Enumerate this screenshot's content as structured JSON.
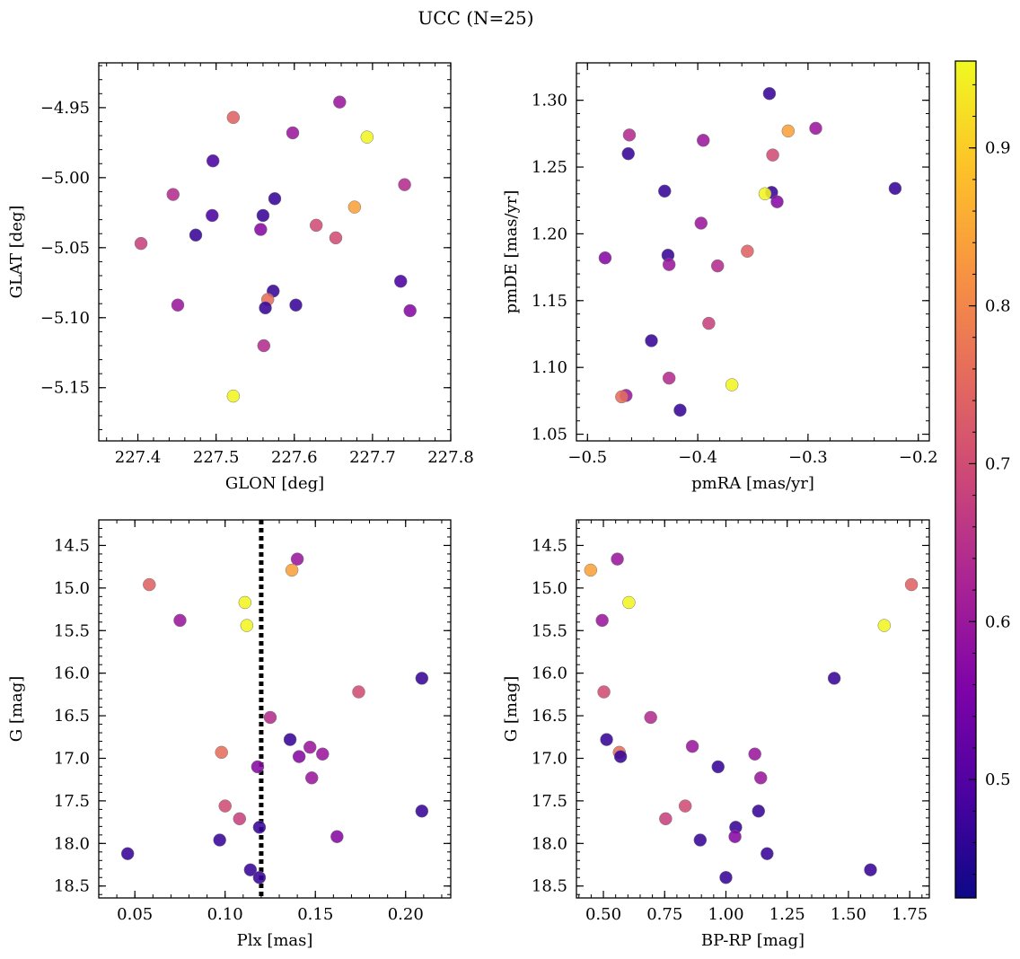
{
  "title": "UCC (N=25)",
  "colorbar": {
    "min": 0.425,
    "max": 0.955,
    "ticks": [
      0.5,
      0.6,
      0.7,
      0.8,
      0.9
    ],
    "tick_labels": [
      "0.5",
      "0.6",
      "0.7",
      "0.8",
      "0.9"
    ],
    "colormap": "plasma"
  },
  "chart_data": [
    {
      "type": "scatter",
      "xlabel": "GLON [deg]",
      "ylabel": "GLAT [deg]",
      "xlim": [
        227.35,
        227.8
      ],
      "ylim": [
        -5.188,
        -4.918
      ],
      "x_ticks": [
        227.4,
        227.5,
        227.6,
        227.7,
        227.8
      ],
      "x_tick_labels": [
        "227.4",
        "227.5",
        "227.6",
        "227.7",
        "227.8"
      ],
      "y_ticks": [
        -5.15,
        -5.1,
        -5.05,
        -5.0,
        -4.95
      ],
      "y_tick_labels": [
        "−5.15",
        "−5.10",
        "−5.05",
        "−5.00",
        "−4.95"
      ],
      "y_inverted": false,
      "points": [
        {
          "x": 227.658,
          "y": -4.946,
          "c": 0.6
        },
        {
          "x": 227.522,
          "y": -4.957,
          "c": 0.74
        },
        {
          "x": 227.598,
          "y": -4.968,
          "c": 0.6
        },
        {
          "x": 227.693,
          "y": -4.971,
          "c": 0.95
        },
        {
          "x": 227.496,
          "y": -4.988,
          "c": 0.49
        },
        {
          "x": 227.741,
          "y": -5.005,
          "c": 0.64
        },
        {
          "x": 227.445,
          "y": -5.012,
          "c": 0.64
        },
        {
          "x": 227.575,
          "y": -5.015,
          "c": 0.47
        },
        {
          "x": 227.677,
          "y": -5.021,
          "c": 0.84
        },
        {
          "x": 227.495,
          "y": -5.027,
          "c": 0.49
        },
        {
          "x": 227.56,
          "y": -5.027,
          "c": 0.47
        },
        {
          "x": 227.628,
          "y": -5.034,
          "c": 0.7
        },
        {
          "x": 227.557,
          "y": -5.037,
          "c": 0.57
        },
        {
          "x": 227.474,
          "y": -5.041,
          "c": 0.47
        },
        {
          "x": 227.653,
          "y": -5.043,
          "c": 0.7
        },
        {
          "x": 227.404,
          "y": -5.047,
          "c": 0.68
        },
        {
          "x": 227.736,
          "y": -5.074,
          "c": 0.49
        },
        {
          "x": 227.573,
          "y": -5.081,
          "c": 0.47
        },
        {
          "x": 227.566,
          "y": -5.087,
          "c": 0.76
        },
        {
          "x": 227.451,
          "y": -5.091,
          "c": 0.6
        },
        {
          "x": 227.602,
          "y": -5.091,
          "c": 0.47
        },
        {
          "x": 227.563,
          "y": -5.093,
          "c": 0.47
        },
        {
          "x": 227.748,
          "y": -5.095,
          "c": 0.57
        },
        {
          "x": 227.561,
          "y": -5.12,
          "c": 0.64
        },
        {
          "x": 227.522,
          "y": -5.156,
          "c": 0.95
        }
      ]
    },
    {
      "type": "scatter",
      "xlabel": "pmRA [mas/yr]",
      "ylabel": "pmDE [mas/yr]",
      "xlim": [
        -0.51,
        -0.19
      ],
      "ylim": [
        1.045,
        1.328
      ],
      "x_ticks": [
        -0.5,
        -0.4,
        -0.3,
        -0.2
      ],
      "x_tick_labels": [
        "−0.5",
        "−0.4",
        "−0.3",
        "−0.2"
      ],
      "y_ticks": [
        1.05,
        1.1,
        1.15,
        1.2,
        1.25,
        1.3
      ],
      "y_tick_labels": [
        "1.05",
        "1.10",
        "1.15",
        "1.20",
        "1.25",
        "1.30"
      ],
      "y_inverted": false,
      "points": [
        {
          "x": -0.335,
          "y": 1.305,
          "c": 0.47
        },
        {
          "x": -0.293,
          "y": 1.279,
          "c": 0.6
        },
        {
          "x": -0.318,
          "y": 1.277,
          "c": 0.84
        },
        {
          "x": -0.462,
          "y": 1.274,
          "c": 0.64
        },
        {
          "x": -0.395,
          "y": 1.27,
          "c": 0.6
        },
        {
          "x": -0.463,
          "y": 1.26,
          "c": 0.47
        },
        {
          "x": -0.332,
          "y": 1.259,
          "c": 0.7
        },
        {
          "x": -0.221,
          "y": 1.234,
          "c": 0.47
        },
        {
          "x": -0.43,
          "y": 1.232,
          "c": 0.47
        },
        {
          "x": -0.333,
          "y": 1.231,
          "c": 0.47
        },
        {
          "x": -0.339,
          "y": 1.23,
          "c": 0.95
        },
        {
          "x": -0.328,
          "y": 1.224,
          "c": 0.57
        },
        {
          "x": -0.397,
          "y": 1.208,
          "c": 0.6
        },
        {
          "x": -0.355,
          "y": 1.187,
          "c": 0.74
        },
        {
          "x": -0.427,
          "y": 1.184,
          "c": 0.47
        },
        {
          "x": -0.484,
          "y": 1.182,
          "c": 0.57
        },
        {
          "x": -0.426,
          "y": 1.177,
          "c": 0.6
        },
        {
          "x": -0.382,
          "y": 1.176,
          "c": 0.64
        },
        {
          "x": -0.39,
          "y": 1.133,
          "c": 0.68
        },
        {
          "x": -0.442,
          "y": 1.12,
          "c": 0.47
        },
        {
          "x": -0.426,
          "y": 1.092,
          "c": 0.64
        },
        {
          "x": -0.369,
          "y": 1.087,
          "c": 0.95
        },
        {
          "x": -0.465,
          "y": 1.079,
          "c": 0.6
        },
        {
          "x": -0.469,
          "y": 1.078,
          "c": 0.76
        },
        {
          "x": -0.416,
          "y": 1.068,
          "c": 0.47
        }
      ]
    },
    {
      "type": "scatter",
      "xlabel": "Plx [mas]",
      "ylabel": "G [mag]",
      "xlim": [
        0.03,
        0.225
      ],
      "ylim": [
        14.2,
        18.64
      ],
      "x_ticks": [
        0.05,
        0.1,
        0.15,
        0.2
      ],
      "x_tick_labels": [
        "0.05",
        "0.10",
        "0.15",
        "0.20"
      ],
      "y_ticks": [
        14.5,
        15.0,
        15.5,
        16.0,
        16.5,
        17.0,
        17.5,
        18.0,
        18.5
      ],
      "y_tick_labels": [
        "14.5",
        "15.0",
        "15.5",
        "16.0",
        "16.5",
        "17.0",
        "17.5",
        "18.0",
        "18.5"
      ],
      "y_inverted": true,
      "vline": {
        "x": 0.12,
        "style": "dotted",
        "color": "#000000"
      },
      "points": [
        {
          "x": 0.14,
          "y": 14.66,
          "c": 0.6
        },
        {
          "x": 0.137,
          "y": 14.79,
          "c": 0.84
        },
        {
          "x": 0.058,
          "y": 14.96,
          "c": 0.74
        },
        {
          "x": 0.111,
          "y": 15.17,
          "c": 0.95
        },
        {
          "x": 0.075,
          "y": 15.38,
          "c": 0.6
        },
        {
          "x": 0.112,
          "y": 15.44,
          "c": 0.95
        },
        {
          "x": 0.209,
          "y": 16.06,
          "c": 0.47
        },
        {
          "x": 0.174,
          "y": 16.22,
          "c": 0.7
        },
        {
          "x": 0.125,
          "y": 16.52,
          "c": 0.64
        },
        {
          "x": 0.136,
          "y": 16.78,
          "c": 0.47
        },
        {
          "x": 0.147,
          "y": 16.87,
          "c": 0.6
        },
        {
          "x": 0.098,
          "y": 16.93,
          "c": 0.76
        },
        {
          "x": 0.154,
          "y": 16.95,
          "c": 0.6
        },
        {
          "x": 0.141,
          "y": 16.98,
          "c": 0.57
        },
        {
          "x": 0.118,
          "y": 17.1,
          "c": 0.57
        },
        {
          "x": 0.148,
          "y": 17.23,
          "c": 0.6
        },
        {
          "x": 0.1,
          "y": 17.56,
          "c": 0.7
        },
        {
          "x": 0.209,
          "y": 17.62,
          "c": 0.47
        },
        {
          "x": 0.108,
          "y": 17.71,
          "c": 0.68
        },
        {
          "x": 0.119,
          "y": 17.81,
          "c": 0.47
        },
        {
          "x": 0.162,
          "y": 17.92,
          "c": 0.57
        },
        {
          "x": 0.097,
          "y": 17.96,
          "c": 0.47
        },
        {
          "x": 0.046,
          "y": 18.12,
          "c": 0.47
        },
        {
          "x": 0.114,
          "y": 18.31,
          "c": 0.47
        },
        {
          "x": 0.119,
          "y": 18.4,
          "c": 0.47
        }
      ]
    },
    {
      "type": "scatter",
      "xlabel": "BP-RP [mag]",
      "ylabel": "G [mag]",
      "xlim": [
        0.39,
        1.83
      ],
      "ylim": [
        14.2,
        18.64
      ],
      "x_ticks": [
        0.5,
        0.75,
        1.0,
        1.25,
        1.5,
        1.75
      ],
      "x_tick_labels": [
        "0.50",
        "0.75",
        "1.00",
        "1.25",
        "1.50",
        "1.75"
      ],
      "y_ticks": [
        14.5,
        15.0,
        15.5,
        16.0,
        16.5,
        17.0,
        17.5,
        18.0,
        18.5
      ],
      "y_tick_labels": [
        "14.5",
        "15.0",
        "15.5",
        "16.0",
        "16.5",
        "17.0",
        "17.5",
        "18.0",
        "18.5"
      ],
      "y_inverted": true,
      "points": [
        {
          "x": 0.557,
          "y": 14.66,
          "c": 0.6
        },
        {
          "x": 0.448,
          "y": 14.79,
          "c": 0.84
        },
        {
          "x": 1.757,
          "y": 14.96,
          "c": 0.74
        },
        {
          "x": 0.604,
          "y": 15.17,
          "c": 0.95
        },
        {
          "x": 0.495,
          "y": 15.38,
          "c": 0.6
        },
        {
          "x": 1.646,
          "y": 15.44,
          "c": 0.95
        },
        {
          "x": 1.442,
          "y": 16.06,
          "c": 0.47
        },
        {
          "x": 0.502,
          "y": 16.22,
          "c": 0.7
        },
        {
          "x": 0.693,
          "y": 16.52,
          "c": 0.64
        },
        {
          "x": 0.513,
          "y": 16.78,
          "c": 0.47
        },
        {
          "x": 0.863,
          "y": 16.86,
          "c": 0.6
        },
        {
          "x": 0.565,
          "y": 16.93,
          "c": 0.76
        },
        {
          "x": 1.118,
          "y": 16.95,
          "c": 0.6
        },
        {
          "x": 0.57,
          "y": 16.98,
          "c": 0.47
        },
        {
          "x": 0.968,
          "y": 17.1,
          "c": 0.47
        },
        {
          "x": 1.142,
          "y": 17.23,
          "c": 0.6
        },
        {
          "x": 0.834,
          "y": 17.56,
          "c": 0.7
        },
        {
          "x": 1.133,
          "y": 17.62,
          "c": 0.47
        },
        {
          "x": 0.754,
          "y": 17.71,
          "c": 0.68
        },
        {
          "x": 1.04,
          "y": 17.81,
          "c": 0.47
        },
        {
          "x": 1.037,
          "y": 17.92,
          "c": 0.57
        },
        {
          "x": 0.895,
          "y": 17.96,
          "c": 0.47
        },
        {
          "x": 1.168,
          "y": 18.12,
          "c": 0.47
        },
        {
          "x": 1.59,
          "y": 18.31,
          "c": 0.47
        },
        {
          "x": 1.0,
          "y": 18.4,
          "c": 0.47
        }
      ]
    }
  ]
}
